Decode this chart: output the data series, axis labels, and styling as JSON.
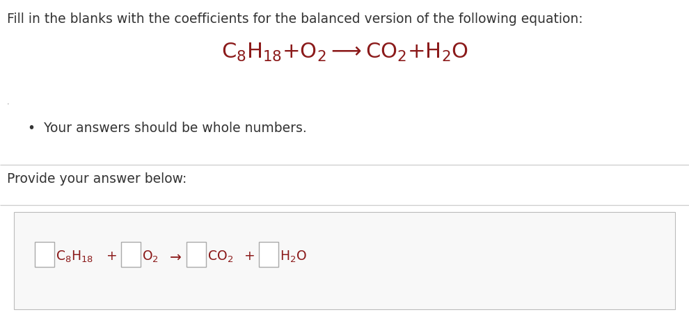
{
  "bg_color": "#ffffff",
  "title_text": "Fill in the blanks with the coefficients for the balanced version of the following equation:",
  "title_fontsize": 13.5,
  "title_color": "#333333",
  "equation_color": "#8B1A1A",
  "equation_fontsize": 22,
  "bullet_text": "Your answers should be whole numbers.",
  "bullet_fontsize": 13.5,
  "bullet_color": "#333333",
  "provide_text": "Provide your answer below:",
  "provide_fontsize": 13.5,
  "provide_color": "#333333",
  "answer_eq_color": "#8B1A1A",
  "answer_eq_fontsize": 13.5,
  "line_color": "#cccccc",
  "box_edge_color": "#aaaaaa"
}
